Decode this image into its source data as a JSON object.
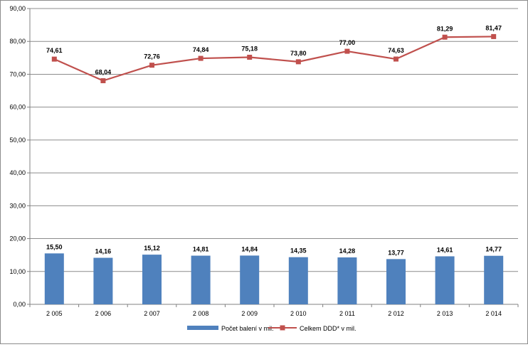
{
  "chart_data": {
    "type": "bar+line",
    "categories": [
      "2 005",
      "2 006",
      "2 007",
      "2 008",
      "2 009",
      "2 010",
      "2 011",
      "2 012",
      "2 013",
      "2 014"
    ],
    "series": [
      {
        "name": "Počet balení v mil.",
        "type": "bar",
        "color": "#4f81bd",
        "values": [
          15.5,
          14.16,
          15.12,
          14.81,
          14.84,
          14.35,
          14.28,
          13.77,
          14.61,
          14.77
        ],
        "labels": [
          "15,50",
          "14,16",
          "15,12",
          "14,81",
          "14,84",
          "14,35",
          "14,28",
          "13,77",
          "14,61",
          "14,77"
        ]
      },
      {
        "name": "Celkem DDD* v mil.",
        "type": "line",
        "color": "#c0504d",
        "values": [
          74.61,
          68.04,
          72.76,
          74.84,
          75.18,
          73.8,
          77.0,
          74.63,
          81.29,
          81.47
        ],
        "labels": [
          "74,61",
          "68,04",
          "72,76",
          "74,84",
          "75,18",
          "73,80",
          "77,00",
          "74,63",
          "81,29",
          "81,47"
        ]
      }
    ],
    "y_ticks": [
      "0,00",
      "10,00",
      "20,00",
      "30,00",
      "40,00",
      "50,00",
      "60,00",
      "70,00",
      "80,00",
      "90,00"
    ],
    "ylim": [
      0,
      90
    ],
    "grid": true,
    "legend_position": "bottom"
  }
}
